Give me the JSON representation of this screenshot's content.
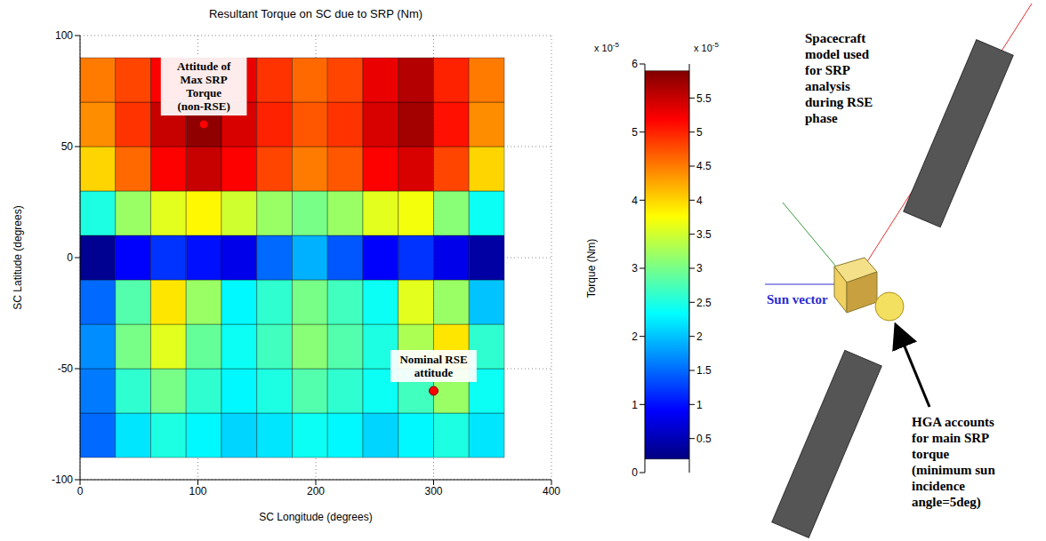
{
  "chart_data": {
    "type": "heatmap",
    "title": "Resultant Torque on SC due to SRP (Nm)",
    "x_label": "SC Longitude (degrees)",
    "y_label": "SC Latitude (degrees)",
    "xlim": [
      0,
      400
    ],
    "xticks": [
      0,
      100,
      200,
      300,
      400
    ],
    "ylim": [
      -100,
      100
    ],
    "yticks": [
      -100,
      -50,
      0,
      50,
      100
    ],
    "grid": true,
    "lon_bins": [
      0,
      30,
      60,
      90,
      120,
      150,
      180,
      210,
      240,
      270,
      300,
      330,
      360
    ],
    "lat_bins": [
      -90,
      -70,
      -50,
      -30,
      -10,
      10,
      30,
      50,
      70,
      90
    ],
    "cells": [
      [
        1.5,
        2.2,
        2.5,
        2.3,
        2.1,
        2.2,
        2.4,
        2.3,
        2.1,
        2.3,
        2.5,
        2.2
      ],
      [
        1.6,
        2.6,
        3.0,
        2.6,
        2.3,
        2.5,
        2.8,
        2.6,
        2.4,
        2.7,
        3.2,
        2.4
      ],
      [
        1.7,
        3.0,
        3.6,
        2.9,
        2.4,
        2.7,
        3.1,
        2.8,
        2.5,
        3.3,
        3.9,
        2.6
      ],
      [
        1.5,
        2.8,
        3.9,
        3.2,
        2.3,
        2.6,
        3.0,
        2.7,
        2.4,
        3.6,
        3.2,
        2.0
      ],
      [
        0.3,
        0.9,
        1.2,
        1.0,
        0.8,
        1.5,
        1.9,
        1.4,
        0.9,
        1.2,
        0.8,
        0.4
      ],
      [
        2.5,
        3.2,
        3.6,
        3.8,
        3.5,
        3.2,
        3.0,
        3.2,
        3.6,
        3.7,
        3.1,
        2.4
      ],
      [
        4.0,
        4.6,
        5.2,
        5.5,
        5.2,
        4.8,
        4.5,
        4.7,
        5.2,
        5.4,
        4.8,
        4.0
      ],
      [
        4.4,
        4.9,
        5.5,
        5.8,
        5.4,
        5.0,
        4.7,
        4.9,
        5.4,
        5.7,
        5.1,
        4.4
      ],
      [
        4.5,
        4.8,
        5.2,
        5.5,
        5.3,
        4.9,
        4.6,
        4.8,
        5.3,
        5.6,
        5.0,
        4.5
      ]
    ],
    "z_label": "Torque (Nm)",
    "zlim": [
      0,
      6
    ],
    "zticks": [
      0,
      1,
      2,
      3,
      4,
      5,
      6
    ],
    "z_multiplier": "x 10",
    "z_multiplier_exp": "-5",
    "colorbar": {
      "range": [
        0.2,
        5.9
      ],
      "ticks": [
        0.5,
        1,
        1.5,
        2,
        2.5,
        3,
        3.5,
        4,
        4.5,
        5,
        5.5
      ],
      "multiplier": "x 10",
      "multiplier_exp": "-5"
    },
    "annotations": [
      {
        "text": "Attitude of Max SRP Torque (non-RSE)",
        "x": 105,
        "y": 60,
        "color": "#ff0000"
      },
      {
        "text": "Nominal RSE attitude",
        "x": 300,
        "y": -60,
        "color": "#ff0000"
      }
    ]
  },
  "diagram": {
    "title": "Spacecraft model used for SRP analysis during RSE phase",
    "sun_vector_label": "Sun vector",
    "hga_label": "HGA accounts for main SRP torque (minimum sun incidence angle=5deg)"
  }
}
